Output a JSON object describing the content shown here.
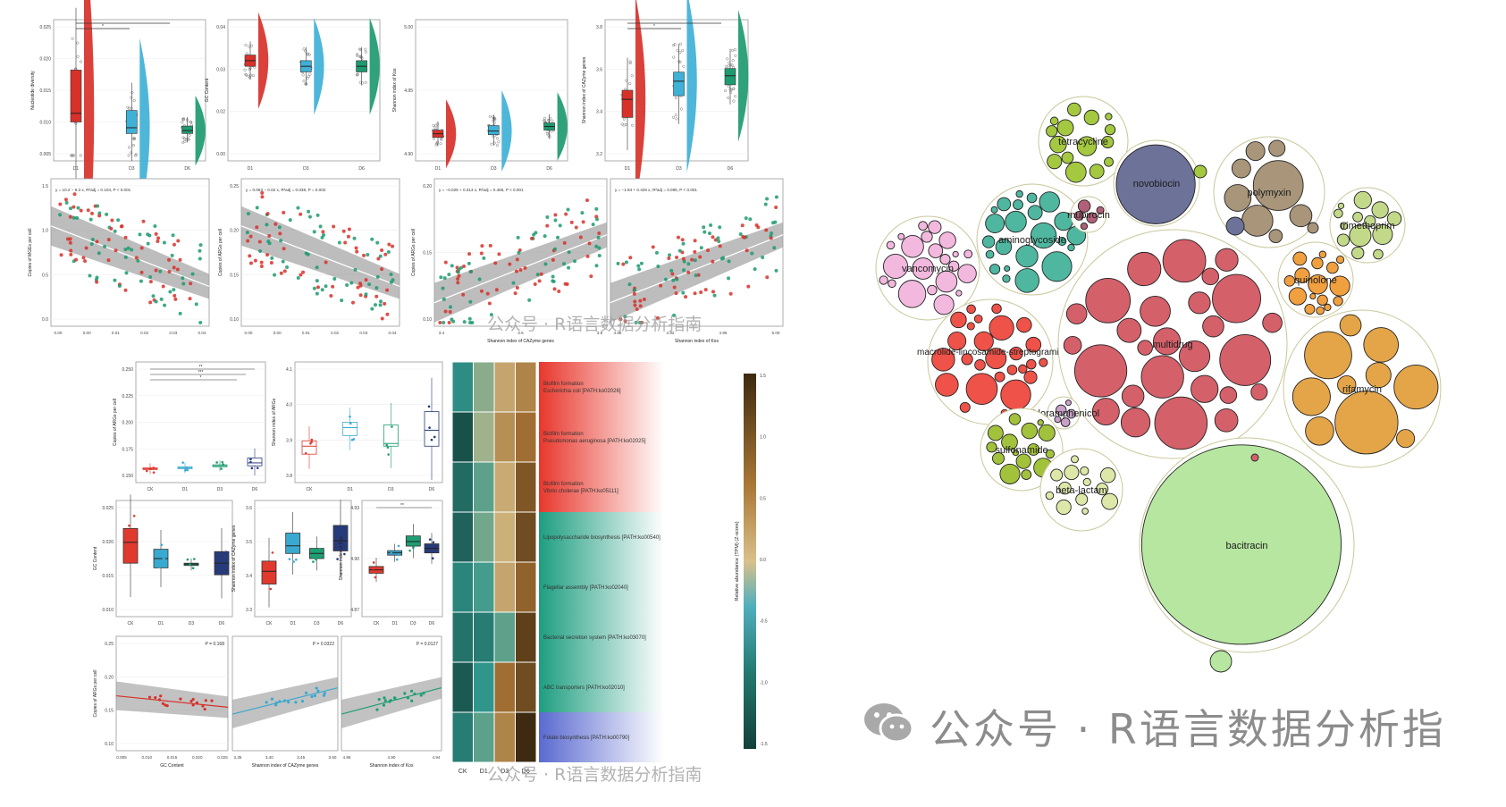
{
  "watermark": {
    "text": "公众号 · R语言数据分析指",
    "text_full": "公众号 · R语言数据分析指南"
  },
  "colors": {
    "d1_red": "#d7312a",
    "d3_blue": "#3fb0d6",
    "d6_green": "#1d9a70",
    "ck_red": "#e03a2f",
    "d1_box": "#3aa9cf",
    "d3_box": "#1f9e72",
    "d6_box": "#273b7a",
    "heat_low": "#123f3a",
    "heat_mid": "#d9c08a",
    "heat_high": "#3d2a10"
  },
  "chart_data": [
    {
      "type": "raincloud",
      "ylabel": "Nucleotide diversity",
      "categories": [
        "D1",
        "D3",
        "D6"
      ],
      "yticks": [
        "0.025",
        "0.020",
        "0.015",
        "0.010",
        "0.005"
      ],
      "ylim": [
        0.005,
        0.027
      ],
      "median": [
        0.012,
        0.0095,
        0.009
      ],
      "q1": [
        0.0105,
        0.0085,
        0.0085
      ],
      "q3": [
        0.0195,
        0.0125,
        0.0098
      ],
      "sig": [
        "*",
        "**"
      ]
    },
    {
      "type": "raincloud",
      "ylabel": "GC Content",
      "categories": [
        "D1",
        "D3",
        "D6"
      ],
      "yticks": [
        "0.04",
        "0.03",
        "0.02",
        "0.00"
      ],
      "ylim": [
        0.0,
        0.045
      ],
      "median": [
        0.033,
        0.031,
        0.031
      ],
      "q1": [
        0.031,
        0.029,
        0.029
      ],
      "q3": [
        0.035,
        0.033,
        0.033
      ]
    },
    {
      "type": "raincloud",
      "ylabel": "Shannon index of Kos",
      "categories": [
        "D1",
        "D3",
        "D6"
      ],
      "yticks": [
        "5.00",
        "4.95",
        "4.90"
      ],
      "ylim": [
        4.88,
        5.02
      ],
      "median": [
        4.902,
        4.905,
        4.91
      ],
      "q1": [
        4.898,
        4.901,
        4.906
      ],
      "q3": [
        4.906,
        4.911,
        4.914
      ]
    },
    {
      "type": "raincloud",
      "ylabel": "Shannon index of CAZyme genes",
      "categories": [
        "D1",
        "D3",
        "D6"
      ],
      "yticks": [
        "3.8",
        "3.6",
        "3.4",
        "3.2"
      ],
      "ylim": [
        3.15,
        3.85
      ],
      "median": [
        3.45,
        3.55,
        3.58
      ],
      "q1": [
        3.35,
        3.47,
        3.53
      ],
      "q3": [
        3.5,
        3.6,
        3.62
      ],
      "sig": [
        "*",
        "**"
      ]
    },
    {
      "type": "scatter",
      "ylabel": "Copies of MGEs per cell",
      "xticks": [
        "0.00",
        "0.00",
        "0.01",
        "0.02",
        "0.03",
        "0.04"
      ],
      "yticks": [
        "1.5",
        "1.0",
        "0.5",
        "0.0"
      ],
      "equation": "y = 10.2 − 6.3 x, R²adj = 0.104, P < 0.001",
      "trend": [
        [
          0,
          1.0
        ],
        [
          1,
          0.25
        ]
      ]
    },
    {
      "type": "scatter",
      "ylabel": "Copies of ARGs per cell",
      "xticks": [
        "0.00",
        "0.00",
        "0.01",
        "0.02",
        "0.03",
        "0.04"
      ],
      "yticks": [
        "0.25",
        "0.20",
        "0.15",
        "0.10"
      ],
      "equation": "y = 0.063 − 0.02 x, R²adj = 0.038, P = 0.002",
      "trend": [
        [
          0,
          0.17
        ],
        [
          1,
          0.125
        ]
      ]
    },
    {
      "type": "scatter",
      "ylabel": "Copies of ARGs per cell",
      "xlabel": "Shannon index of CAZyme genes",
      "xticks": [
        "3.4",
        "3.6",
        "3.8"
      ],
      "yticks": [
        "0.20",
        "0.15",
        "0.10"
      ],
      "equation": "y = −0.026 + 0.313 x, R²adj = 0.466, P < 0.001",
      "trend": [
        [
          0,
          0.1
        ],
        [
          1,
          0.19
        ]
      ]
    },
    {
      "type": "scatter",
      "xlabel": "Shannon index of Kos",
      "xticks": [
        "4.88",
        "4.92",
        "4.96",
        "5.00"
      ],
      "equation": "y = −1.94 + 0.426 x, R²adj = 0.095, P < 0.001",
      "trend": [
        [
          0,
          0.11
        ],
        [
          1,
          0.19
        ]
      ]
    },
    {
      "type": "box",
      "ylabel": "Copies of ARGs per cell",
      "categories": [
        "CK",
        "D1",
        "D3",
        "D6"
      ],
      "yticks": [
        "0.250",
        "0.225",
        "0.200",
        "0.175",
        "0.150"
      ],
      "ylim": [
        0.145,
        0.255
      ],
      "q1": [
        0.151,
        0.152,
        0.154,
        0.155
      ],
      "median": [
        0.152,
        0.153,
        0.155,
        0.158
      ],
      "q3": [
        0.153,
        0.154,
        0.156,
        0.163
      ],
      "sig": [
        "**",
        "***",
        "*"
      ]
    },
    {
      "type": "box",
      "ylabel": "Shannon index of ARGs",
      "categories": [
        "CK",
        "D1",
        "D3",
        "D6"
      ],
      "yticks": [
        "4.1",
        "4.0",
        "3.9",
        "3.8"
      ],
      "ylim": [
        3.75,
        4.15
      ],
      "q1": [
        3.83,
        3.9,
        3.86,
        3.86
      ],
      "median": [
        3.86,
        3.93,
        3.87,
        3.92
      ],
      "q3": [
        3.88,
        3.95,
        3.94,
        3.99
      ]
    },
    {
      "type": "box",
      "ylabel": "GC Content",
      "categories": [
        "CK",
        "D1",
        "D3",
        "D6"
      ],
      "yticks": [
        "0.025",
        "0.020",
        "0.015",
        "0.010"
      ],
      "ylim": [
        0.008,
        0.03
      ],
      "q1": [
        0.018,
        0.017,
        0.0175,
        0.0155
      ],
      "median": [
        0.0225,
        0.019,
        0.0178,
        0.018
      ],
      "q3": [
        0.0255,
        0.021,
        0.018,
        0.0205
      ]
    },
    {
      "type": "box",
      "ylabel": "Shannon index of CAZyme genes",
      "categories": [
        "CK",
        "D1",
        "D3",
        "D6"
      ],
      "yticks": [
        "3.6",
        "3.5",
        "3.4",
        "3.3"
      ],
      "ylim": [
        3.25,
        3.65
      ],
      "q1": [
        3.35,
        3.47,
        3.45,
        3.48
      ],
      "median": [
        3.4,
        3.5,
        3.47,
        3.52
      ],
      "q3": [
        3.44,
        3.55,
        3.49,
        3.58
      ]
    },
    {
      "type": "box",
      "ylabel": "Shannon index of Kos",
      "categories": [
        "CK",
        "D1",
        "D3",
        "D6"
      ],
      "yticks": [
        "4.93",
        "4.90",
        "4.87"
      ],
      "ylim": [
        4.85,
        4.94
      ],
      "q1": [
        4.882,
        4.898,
        4.906,
        4.9
      ],
      "median": [
        4.885,
        4.9,
        4.91,
        4.904
      ],
      "q3": [
        4.888,
        4.902,
        4.915,
        4.908
      ],
      "sig": [
        "**"
      ]
    },
    {
      "type": "scatter",
      "ylabel": "Copies of ARGs per cell",
      "xlabel": "GC Content",
      "xticks": [
        "0.005",
        "0.010",
        "0.015",
        "0.020",
        "0.025"
      ],
      "yticks": [
        "0.25",
        "0.20",
        "0.15",
        "0.10"
      ],
      "pvalue": "P = 0.168"
    },
    {
      "type": "scatter",
      "xlabel": "Shannon index of CAZyme genes",
      "xticks": [
        "3.35",
        "3.40",
        "3.45",
        "3.50"
      ],
      "pvalue": "P = 0.0322"
    },
    {
      "type": "scatter",
      "xlabel": "Shannon index of Kos",
      "xticks": [
        "4.86",
        "4.90",
        "4.94"
      ],
      "pvalue": "P = 0.0127"
    },
    {
      "type": "heatmap",
      "columns": [
        "CK",
        "D1",
        "D3",
        "D6"
      ],
      "legend_title": "Relative abundance (TPM) (Z-score)",
      "legend_ticks": [
        "1.5",
        "1.0",
        "0.5",
        "0.0",
        "-0.5",
        "-1.0",
        "-1.5"
      ],
      "rows": [
        {
          "label": [
            "Biofilm formation",
            "Escherichia coli [PATH:ko02026]"
          ],
          "group": "red",
          "values": [
            -0.6,
            -0.1,
            0.5,
            0.8
          ]
        },
        {
          "label": [
            "Biofilm formation",
            "Pseudomonas aeruginosa [PATH:ko02025]"
          ],
          "group": "red",
          "values": [
            -1.3,
            0.0,
            0.7,
            1.0
          ]
        },
        {
          "label": [
            "Biofilm formation",
            "Vibrio cholerae [PATH:ko05111]"
          ],
          "group": "red",
          "values": [
            -1.0,
            -0.3,
            0.45,
            1.2
          ]
        },
        {
          "label": [
            "Lipopolysaccharide biosynthesis [PATH:ko00540]"
          ],
          "group": "green",
          "values": [
            -1.1,
            -0.2,
            0.4,
            1.3
          ]
        },
        {
          "label": [
            "Flagellar assembly [PATH:ko02040]"
          ],
          "group": "green",
          "values": [
            -0.7,
            -0.4,
            0.5,
            1.1
          ]
        },
        {
          "label": [
            "Bacterial secretion system [PATH:ko03070]"
          ],
          "group": "green",
          "values": [
            -0.9,
            -0.8,
            -0.3,
            1.4
          ]
        },
        {
          "label": [
            "ABC transporters [PATH:ko02010]"
          ],
          "group": "green",
          "values": [
            -1.2,
            -0.5,
            1.0,
            1.3
          ]
        },
        {
          "label": [
            "Folate biosynthesis [PATH:ko00790]"
          ],
          "group": "blue",
          "values": [
            -0.8,
            -0.3,
            0.8,
            1.6
          ]
        }
      ]
    },
    {
      "type": "bubble",
      "groups": [
        {
          "name": "tetracycline",
          "color": "#a4c840"
        },
        {
          "name": "novobiocin",
          "color": "#6d7298"
        },
        {
          "name": "polymyxin",
          "color": "#a8957a"
        },
        {
          "name": "trimethoprim",
          "color": "#c3d98a"
        },
        {
          "name": "aminoglycoside",
          "color": "#4fb7a0"
        },
        {
          "name": "mupirocin",
          "color": "#b06078"
        },
        {
          "name": "vancomycin",
          "color": "#f3b8de"
        },
        {
          "name": "quinolone",
          "color": "#f1a040"
        },
        {
          "name": "macrolide-lincosamide-streptogramin",
          "color": "#ee5248"
        },
        {
          "name": "multidrug",
          "color": "#d4606a"
        },
        {
          "name": "rifamycin",
          "color": "#e3a548"
        },
        {
          "name": "chloramphenicol",
          "color": "#c9a0c8"
        },
        {
          "name": "sulfonamide",
          "color": "#a2c23c"
        },
        {
          "name": "beta-lactam",
          "color": "#dde8a8"
        },
        {
          "name": "bacitracin",
          "color": "#b6e6a0"
        }
      ]
    }
  ]
}
